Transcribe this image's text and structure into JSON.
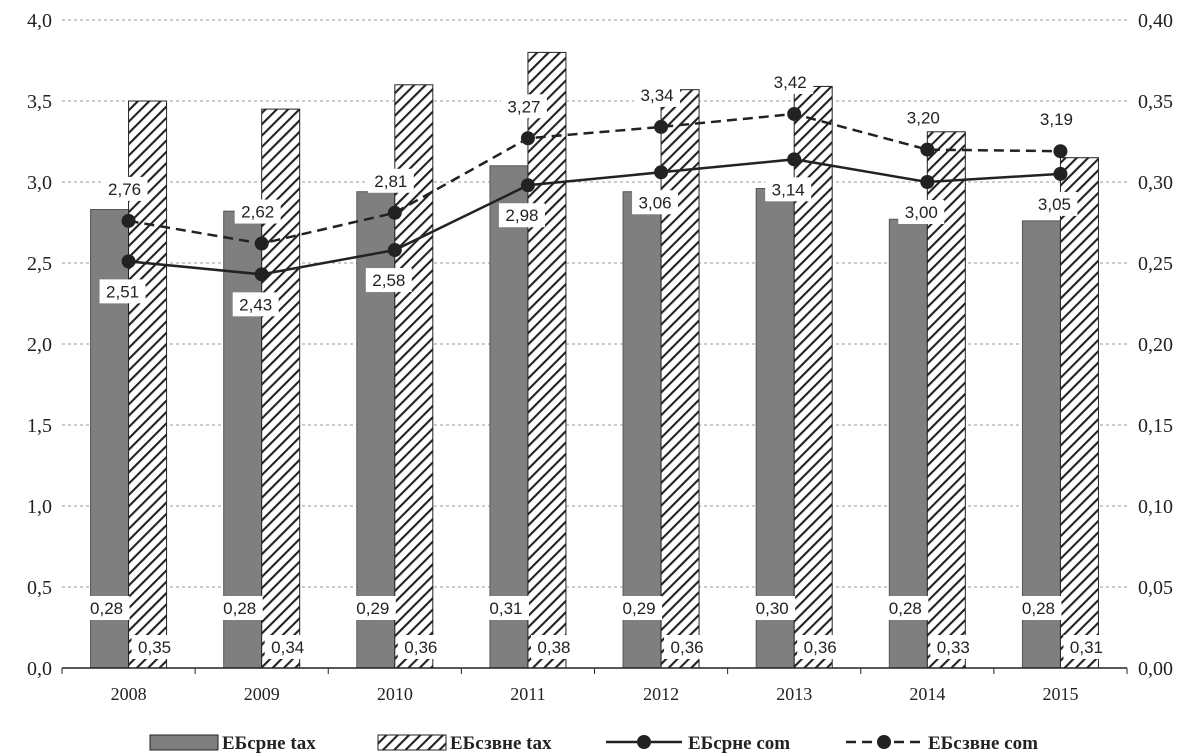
{
  "chart_data": {
    "type": "bar",
    "categories": [
      "2008",
      "2009",
      "2010",
      "2011",
      "2012",
      "2013",
      "2014",
      "2015"
    ],
    "left_axis": {
      "ylim": [
        0,
        4
      ],
      "ticks": [
        "0,0",
        "0,5",
        "1,0",
        "1,5",
        "2,0",
        "2,5",
        "3,0",
        "3,5",
        "4,0"
      ]
    },
    "right_axis": {
      "ylim": [
        0,
        0.4
      ],
      "ticks": [
        "0,00",
        "0,05",
        "0,10",
        "0,15",
        "0,20",
        "0,25",
        "0,30",
        "0,35",
        "0,40"
      ]
    },
    "grid": "horizontal-dashed",
    "legend_position": "bottom",
    "series": [
      {
        "name": "ЕБсрне tax",
        "type": "bar",
        "axis": "right",
        "style": "solid-gray",
        "color": "#7f7f7f",
        "values": [
          0.283,
          0.282,
          0.294,
          0.31,
          0.294,
          0.296,
          0.277,
          0.276
        ],
        "labels": [
          "0,28",
          "0,28",
          "0,29",
          "0,31",
          "0,29",
          "0,30",
          "0,28",
          "0,28"
        ]
      },
      {
        "name": "ЕБсзвне tax",
        "type": "bar",
        "axis": "right",
        "style": "hatched",
        "color": "#222222",
        "values": [
          0.35,
          0.345,
          0.36,
          0.38,
          0.357,
          0.359,
          0.331,
          0.315
        ],
        "labels": [
          "0,35",
          "0,34",
          "0,36",
          "0,38",
          "0,36",
          "0,36",
          "0,33",
          "0,31"
        ]
      },
      {
        "name": "ЕБсрне com",
        "type": "line",
        "axis": "left",
        "style": "solid",
        "color": "#222222",
        "values": [
          2.51,
          2.43,
          2.58,
          2.98,
          3.06,
          3.14,
          3.0,
          3.05
        ],
        "labels": [
          "2,51",
          "2,43",
          "2,58",
          "2,98",
          "3,06",
          "3,14",
          "3,00",
          "3,05"
        ]
      },
      {
        "name": "ЕБсзвне com",
        "type": "line",
        "axis": "left",
        "style": "dashed",
        "color": "#222222",
        "values": [
          2.76,
          2.62,
          2.81,
          3.27,
          3.34,
          3.42,
          3.2,
          3.19
        ],
        "labels": [
          "2,76",
          "2,62",
          "2,81",
          "3,27",
          "3,34",
          "3,42",
          "3,20",
          "3,19"
        ]
      }
    ]
  }
}
